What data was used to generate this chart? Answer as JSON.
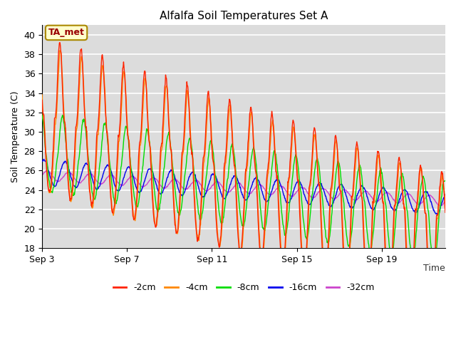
{
  "title": "Alfalfa Soil Temperatures Set A",
  "xlabel": "Time",
  "ylabel": "Soil Temperature (C)",
  "ylim": [
    18,
    41
  ],
  "yticks": [
    18,
    20,
    22,
    24,
    26,
    28,
    30,
    32,
    34,
    36,
    38,
    40
  ],
  "xtick_labels": [
    "Sep 3",
    "Sep 7",
    "Sep 11",
    "Sep 15",
    "Sep 19"
  ],
  "xtick_positions": [
    0,
    4,
    8,
    12,
    16
  ],
  "colors": {
    "-2cm": "#ff2200",
    "-4cm": "#ff8800",
    "-8cm": "#00dd00",
    "-16cm": "#0000ee",
    "-32cm": "#cc44cc"
  },
  "annotation_text": "TA_met",
  "annotation_color": "#990000",
  "annotation_bg": "#ffffcc",
  "annotation_border": "#aa8800",
  "n_days": 19,
  "samples_per_day": 48
}
